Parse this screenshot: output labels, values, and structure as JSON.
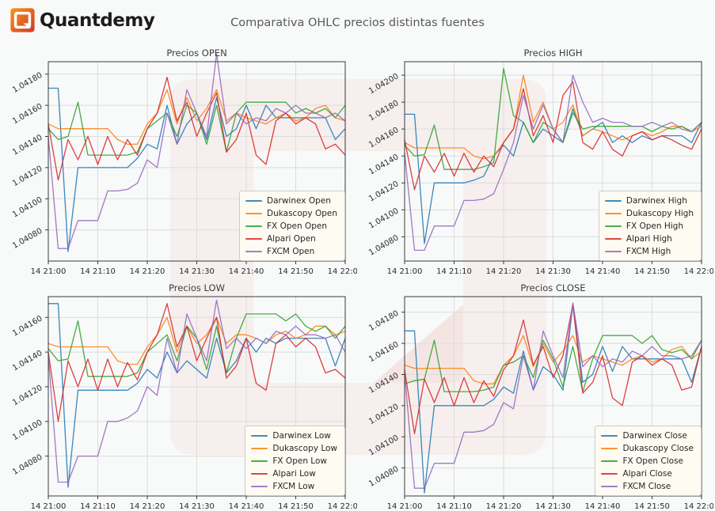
{
  "header": {
    "brand": "Quantdemy",
    "title": "Comparativa OHLC precios distintas fuentes"
  },
  "brand_colors": {
    "logo_gradient_start": "#f7941e",
    "logo_gradient_end": "#cf3a27",
    "watermark_tint": "#d94f30"
  },
  "chart_data": [
    {
      "type": "line",
      "title": "Precios OPEN",
      "x_tick_labels": [
        "14 21:00",
        "14 21:10",
        "14 21:20",
        "14 21:30",
        "14 21:40",
        "14 21:50",
        "14 22:00"
      ],
      "x_range_minutes": [
        0,
        60
      ],
      "x_step_minutes": 2,
      "y_ticks": [
        1.0408,
        1.041,
        1.0412,
        1.0414,
        1.0416,
        1.0418
      ],
      "ylim": [
        1.0406,
        1.04188
      ],
      "grid": true,
      "legend_position": "lower right",
      "series": [
        {
          "name": "Darwinex Open",
          "color": "#1f77b4",
          "values": [
            1.04171,
            1.04171,
            1.04066,
            1.0412,
            1.0412,
            1.0412,
            1.0412,
            1.0412,
            1.0412,
            1.04126,
            1.04135,
            1.04132,
            1.0416,
            1.04135,
            1.04148,
            1.04155,
            1.04138,
            1.04165,
            1.0414,
            1.04145,
            1.0416,
            1.04145,
            1.0416,
            1.04152,
            1.04152,
            1.04152,
            1.04152,
            1.04152,
            1.04152,
            1.04138,
            1.04145
          ]
        },
        {
          "name": "Dukascopy Open",
          "color": "#ff7f0e",
          "values": [
            1.04148,
            1.04145,
            1.04145,
            1.04145,
            1.04145,
            1.04145,
            1.04145,
            1.04138,
            1.04135,
            1.04135,
            1.04148,
            1.04155,
            1.0417,
            1.04148,
            1.04165,
            1.0415,
            1.04158,
            1.0417,
            1.0415,
            1.04155,
            1.04152,
            1.0415,
            1.04148,
            1.04152,
            1.04155,
            1.0415,
            1.04152,
            1.04158,
            1.0416,
            1.04152,
            1.0415
          ]
        },
        {
          "name": "FX Open Open",
          "color": "#2ca02c",
          "values": [
            1.04145,
            1.04138,
            1.0414,
            1.04162,
            1.04128,
            1.04128,
            1.04128,
            1.04128,
            1.04128,
            1.0413,
            1.04145,
            1.0415,
            1.04155,
            1.0414,
            1.0416,
            1.04155,
            1.04135,
            1.0416,
            1.0413,
            1.04155,
            1.04162,
            1.04162,
            1.04162,
            1.04162,
            1.04162,
            1.04155,
            1.04158,
            1.04155,
            1.04158,
            1.04152,
            1.0416
          ]
        },
        {
          "name": "Alpari Open",
          "color": "#d62728",
          "values": [
            1.04148,
            1.04112,
            1.04138,
            1.04125,
            1.0414,
            1.04122,
            1.0414,
            1.04125,
            1.04138,
            1.04128,
            1.04145,
            1.04155,
            1.04178,
            1.0415,
            1.04162,
            1.0414,
            1.04155,
            1.04168,
            1.0413,
            1.04138,
            1.04155,
            1.04128,
            1.04122,
            1.0415,
            1.04155,
            1.04148,
            1.04152,
            1.04148,
            1.04132,
            1.04135,
            1.04128
          ]
        },
        {
          "name": "FXCM Open",
          "color": "#9467bd",
          "values": [
            1.0414,
            1.04068,
            1.04068,
            1.04086,
            1.04086,
            1.04086,
            1.04105,
            1.04105,
            1.04106,
            1.0411,
            1.04125,
            1.0412,
            1.04155,
            1.04135,
            1.0417,
            1.04155,
            1.0414,
            1.04193,
            1.04148,
            1.04155,
            1.04148,
            1.04152,
            1.0415,
            1.04158,
            1.04155,
            1.0416,
            1.04155,
            1.04155,
            1.04152,
            1.04155,
            1.0415
          ]
        }
      ]
    },
    {
      "type": "line",
      "title": "Precios HIGH",
      "x_tick_labels": [
        "14 21:00",
        "14 21:10",
        "14 21:20",
        "14 21:30",
        "14 21:40",
        "14 21:50",
        "14 22:00"
      ],
      "x_range_minutes": [
        0,
        60
      ],
      "x_step_minutes": 2,
      "y_ticks": [
        1.0408,
        1.041,
        1.0412,
        1.0414,
        1.0416,
        1.0418,
        1.042
      ],
      "ylim": [
        1.04062,
        1.0421
      ],
      "grid": true,
      "legend_position": "lower right",
      "series": [
        {
          "name": "Darwinex High",
          "color": "#1f77b4",
          "values": [
            1.04171,
            1.04171,
            1.04075,
            1.0412,
            1.0412,
            1.0412,
            1.0412,
            1.04122,
            1.04125,
            1.0414,
            1.04148,
            1.0414,
            1.04165,
            1.0415,
            1.0416,
            1.04155,
            1.0415,
            1.04175,
            1.04155,
            1.0416,
            1.04165,
            1.0415,
            1.04155,
            1.0415,
            1.04155,
            1.04152,
            1.04155,
            1.04155,
            1.04155,
            1.0415,
            1.04165
          ]
        },
        {
          "name": "Dukascopy High",
          "color": "#ff7f0e",
          "values": [
            1.0415,
            1.04146,
            1.04146,
            1.04146,
            1.04146,
            1.04146,
            1.04146,
            1.0414,
            1.04138,
            1.0414,
            1.0415,
            1.0416,
            1.042,
            1.04165,
            1.0418,
            1.0416,
            1.04165,
            1.04178,
            1.04155,
            1.0416,
            1.04158,
            1.04155,
            1.04152,
            1.04155,
            1.04158,
            1.04155,
            1.04158,
            1.04162,
            1.04162,
            1.04158,
            1.04162
          ]
        },
        {
          "name": "FX Open High",
          "color": "#2ca02c",
          "values": [
            1.04148,
            1.0414,
            1.04141,
            1.04163,
            1.0413,
            1.0413,
            1.0413,
            1.0413,
            1.04132,
            1.04135,
            1.04205,
            1.0417,
            1.04165,
            1.0415,
            1.04165,
            1.0416,
            1.0415,
            1.04172,
            1.0416,
            1.04162,
            1.04162,
            1.04162,
            1.04162,
            1.04162,
            1.04162,
            1.04158,
            1.04162,
            1.0416,
            1.04162,
            1.04158,
            1.04165
          ]
        },
        {
          "name": "Alpari High",
          "color": "#d62728",
          "values": [
            1.04152,
            1.04115,
            1.0414,
            1.04128,
            1.04142,
            1.04125,
            1.04142,
            1.04128,
            1.0414,
            1.04132,
            1.0415,
            1.0416,
            1.0419,
            1.04155,
            1.0417,
            1.0415,
            1.04185,
            1.04195,
            1.0415,
            1.04145,
            1.04158,
            1.04145,
            1.0414,
            1.04155,
            1.04158,
            1.04152,
            1.04155,
            1.04152,
            1.04148,
            1.04145,
            1.0416
          ]
        },
        {
          "name": "FXCM High",
          "color": "#9467bd",
          "values": [
            1.04142,
            1.0407,
            1.0407,
            1.04088,
            1.04088,
            1.04088,
            1.04107,
            1.04107,
            1.04108,
            1.04112,
            1.0413,
            1.0415,
            1.04185,
            1.0416,
            1.04178,
            1.0416,
            1.0415,
            1.042,
            1.0418,
            1.04165,
            1.04168,
            1.04165,
            1.04165,
            1.04162,
            1.04162,
            1.04165,
            1.04162,
            1.04165,
            1.0416,
            1.04158,
            1.04165
          ]
        }
      ]
    },
    {
      "type": "line",
      "title": "Precios LOW",
      "x_tick_labels": [
        "14 21:00",
        "14 21:10",
        "14 21:20",
        "14 21:30",
        "14 21:40",
        "14 21:50",
        "14 22:00"
      ],
      "x_range_minutes": [
        0,
        60
      ],
      "x_step_minutes": 2,
      "y_ticks": [
        1.0408,
        1.041,
        1.0412,
        1.0414,
        1.0416
      ],
      "ylim": [
        1.04057,
        1.04172
      ],
      "grid": true,
      "legend_position": "lower right",
      "series": [
        {
          "name": "Darwinex Low",
          "color": "#1f77b4",
          "values": [
            1.04168,
            1.04168,
            1.04062,
            1.04118,
            1.04118,
            1.04118,
            1.04118,
            1.04118,
            1.04118,
            1.04122,
            1.0413,
            1.04125,
            1.0414,
            1.04128,
            1.04135,
            1.0413,
            1.04125,
            1.04148,
            1.04128,
            1.04135,
            1.04148,
            1.0414,
            1.04148,
            1.04145,
            1.04148,
            1.04148,
            1.04148,
            1.04148,
            1.04148,
            1.04132,
            1.04148
          ]
        },
        {
          "name": "Dukascopy Low",
          "color": "#ff7f0e",
          "values": [
            1.04145,
            1.04143,
            1.04143,
            1.04143,
            1.04143,
            1.04143,
            1.04143,
            1.04135,
            1.04133,
            1.04133,
            1.04143,
            1.0415,
            1.0416,
            1.0414,
            1.04155,
            1.04145,
            1.0415,
            1.0416,
            1.04145,
            1.0415,
            1.0415,
            1.04148,
            1.04145,
            1.0415,
            1.04152,
            1.04148,
            1.0415,
            1.04155,
            1.04155,
            1.0415,
            1.04152
          ]
        },
        {
          "name": "FX Open Low",
          "color": "#2ca02c",
          "values": [
            1.04142,
            1.04135,
            1.04136,
            1.04158,
            1.04126,
            1.04126,
            1.04126,
            1.04126,
            1.04126,
            1.04128,
            1.0414,
            1.04145,
            1.0415,
            1.04135,
            1.04155,
            1.04148,
            1.0413,
            1.04155,
            1.04128,
            1.04148,
            1.04162,
            1.04162,
            1.04162,
            1.04162,
            1.04158,
            1.04162,
            1.04155,
            1.04152,
            1.04155,
            1.04148,
            1.04155
          ]
        },
        {
          "name": "Alpari Low",
          "color": "#d62728",
          "values": [
            1.0414,
            1.041,
            1.04135,
            1.0412,
            1.04136,
            1.04118,
            1.04136,
            1.0412,
            1.04134,
            1.04124,
            1.0414,
            1.0415,
            1.04168,
            1.04143,
            1.04155,
            1.04135,
            1.04148,
            1.0416,
            1.04125,
            1.04132,
            1.04148,
            1.04122,
            1.04118,
            1.04145,
            1.0415,
            1.04143,
            1.04148,
            1.04143,
            1.04128,
            1.0413,
            1.04125
          ]
        },
        {
          "name": "FXCM Low",
          "color": "#9467bd",
          "values": [
            1.04138,
            1.04065,
            1.04065,
            1.0408,
            1.0408,
            1.0408,
            1.041,
            1.041,
            1.04102,
            1.04106,
            1.0412,
            1.04115,
            1.04148,
            1.04128,
            1.04162,
            1.04148,
            1.04135,
            1.0417,
            1.04142,
            1.04148,
            1.04142,
            1.04148,
            1.04145,
            1.04152,
            1.0415,
            1.04155,
            1.0415,
            1.0415,
            1.04148,
            1.0415,
            1.0414
          ]
        }
      ]
    },
    {
      "type": "line",
      "title": "Precios CLOSE",
      "x_tick_labels": [
        "14 21:00",
        "14 21:10",
        "14 21:20",
        "14 21:30",
        "14 21:40",
        "14 21:50",
        "14 22:00"
      ],
      "x_range_minutes": [
        0,
        60
      ],
      "x_step_minutes": 2,
      "y_ticks": [
        1.0408,
        1.041,
        1.0412,
        1.0414,
        1.0416,
        1.0418
      ],
      "ylim": [
        1.04062,
        1.0419
      ],
      "grid": true,
      "legend_position": "lower right",
      "series": [
        {
          "name": "Darwinex Close",
          "color": "#1f77b4",
          "values": [
            1.04168,
            1.04168,
            1.04064,
            1.0412,
            1.0412,
            1.0412,
            1.0412,
            1.0412,
            1.0412,
            1.04124,
            1.04132,
            1.04128,
            1.04155,
            1.0413,
            1.04145,
            1.0414,
            1.0413,
            1.04185,
            1.04135,
            1.0414,
            1.04158,
            1.04142,
            1.04158,
            1.0415,
            1.0415,
            1.0415,
            1.0415,
            1.0415,
            1.0415,
            1.04135,
            1.04158
          ]
        },
        {
          "name": "Dukascopy Close",
          "color": "#ff7f0e",
          "values": [
            1.04146,
            1.04144,
            1.04144,
            1.04144,
            1.04144,
            1.04144,
            1.04144,
            1.04136,
            1.04134,
            1.04134,
            1.04146,
            1.04152,
            1.04165,
            1.04145,
            1.0416,
            1.04148,
            1.04155,
            1.04165,
            1.04148,
            1.04152,
            1.0415,
            1.04148,
            1.04146,
            1.0415,
            1.04152,
            1.04148,
            1.0415,
            1.04156,
            1.04158,
            1.0415,
            1.04155
          ]
        },
        {
          "name": "FX Open Close",
          "color": "#2ca02c",
          "values": [
            1.04134,
            1.04136,
            1.04137,
            1.04162,
            1.04129,
            1.04129,
            1.04129,
            1.04129,
            1.0413,
            1.04132,
            1.04146,
            1.04148,
            1.04152,
            1.04138,
            1.04162,
            1.0415,
            1.04132,
            1.04158,
            1.04129,
            1.0415,
            1.04165,
            1.04165,
            1.04165,
            1.04165,
            1.0416,
            1.04165,
            1.04156,
            1.04154,
            1.04156,
            1.0415,
            1.04162
          ]
        },
        {
          "name": "Alpari Close",
          "color": "#d62728",
          "values": [
            1.04143,
            1.04102,
            1.04137,
            1.04122,
            1.04138,
            1.0412,
            1.04138,
            1.04122,
            1.04136,
            1.04126,
            1.04143,
            1.04152,
            1.04175,
            1.04146,
            1.04158,
            1.04138,
            1.04152,
            1.04185,
            1.04128,
            1.04135,
            1.04152,
            1.04125,
            1.0412,
            1.04148,
            1.04152,
            1.04146,
            1.0415,
            1.04146,
            1.0413,
            1.04132,
            1.04158
          ]
        },
        {
          "name": "FXCM Close",
          "color": "#9467bd",
          "values": [
            1.04141,
            1.04067,
            1.04067,
            1.04083,
            1.04083,
            1.04083,
            1.04103,
            1.04103,
            1.04104,
            1.04108,
            1.04122,
            1.04118,
            1.04152,
            1.0413,
            1.04168,
            1.04152,
            1.04138,
            1.04186,
            1.04145,
            1.04152,
            1.04145,
            1.0415,
            1.04148,
            1.04155,
            1.04152,
            1.04158,
            1.04152,
            1.04152,
            1.0415,
            1.04152,
            1.04162
          ]
        }
      ]
    }
  ]
}
